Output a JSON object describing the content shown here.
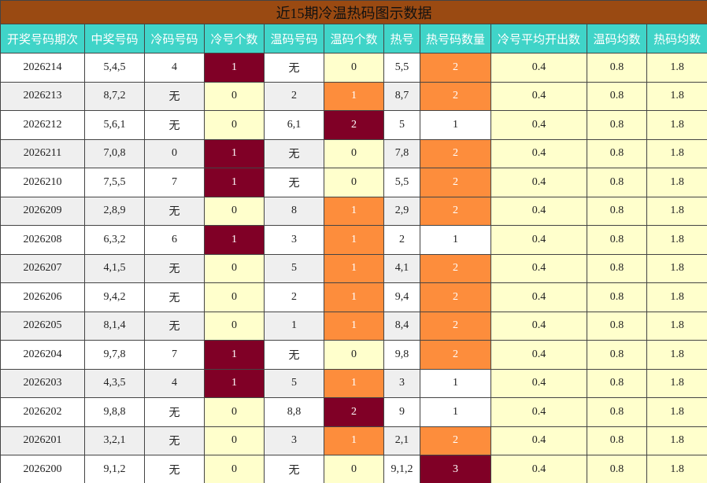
{
  "header": {
    "title": "近15期冷温热码图示数据"
  },
  "table": {
    "columns": [
      "开奖号码期次",
      "中奖号码",
      "冷码号码",
      "冷号个数",
      "温码号码",
      "温码个数",
      "热号",
      "热号码数量",
      "冷号平均开出数",
      "温码均数",
      "热码均数"
    ],
    "rows": [
      [
        "2026214",
        "5,4,5",
        "4",
        1,
        "无",
        0,
        "5,5",
        2,
        0.4,
        0.8,
        1.8
      ],
      [
        "2026213",
        "8,7,2",
        "无",
        0,
        "2",
        1,
        "8,7",
        2,
        0.4,
        0.8,
        1.8
      ],
      [
        "2026212",
        "5,6,1",
        "无",
        0,
        "6,1",
        2,
        "5",
        1,
        0.4,
        0.8,
        1.8
      ],
      [
        "2026211",
        "7,0,8",
        "0",
        1,
        "无",
        0,
        "7,8",
        2,
        0.4,
        0.8,
        1.8
      ],
      [
        "2026210",
        "7,5,5",
        "7",
        1,
        "无",
        0,
        "5,5",
        2,
        0.4,
        0.8,
        1.8
      ],
      [
        "2026209",
        "2,8,9",
        "无",
        0,
        "8",
        1,
        "2,9",
        2,
        0.4,
        0.8,
        1.8
      ],
      [
        "2026208",
        "6,3,2",
        "6",
        1,
        "3",
        1,
        "2",
        1,
        0.4,
        0.8,
        1.8
      ],
      [
        "2026207",
        "4,1,5",
        "无",
        0,
        "5",
        1,
        "4,1",
        2,
        0.4,
        0.8,
        1.8
      ],
      [
        "2026206",
        "9,4,2",
        "无",
        0,
        "2",
        1,
        "9,4",
        2,
        0.4,
        0.8,
        1.8
      ],
      [
        "2026205",
        "8,1,4",
        "无",
        0,
        "1",
        1,
        "8,4",
        2,
        0.4,
        0.8,
        1.8
      ],
      [
        "2026204",
        "9,7,8",
        "7",
        1,
        "无",
        0,
        "9,8",
        2,
        0.4,
        0.8,
        1.8
      ],
      [
        "2026203",
        "4,3,5",
        "4",
        1,
        "5",
        1,
        "3",
        1,
        0.4,
        0.8,
        1.8
      ],
      [
        "2026202",
        "9,8,8",
        "无",
        0,
        "8,8",
        2,
        "9",
        1,
        0.4,
        0.8,
        1.8
      ],
      [
        "2026201",
        "3,2,1",
        "无",
        0,
        "3",
        1,
        "2,1",
        2,
        0.4,
        0.8,
        1.8
      ],
      [
        "2026200",
        "9,1,2",
        "无",
        0,
        "无",
        0,
        "9,1,2",
        3,
        0.4,
        0.8,
        1.8
      ]
    ]
  }
}
